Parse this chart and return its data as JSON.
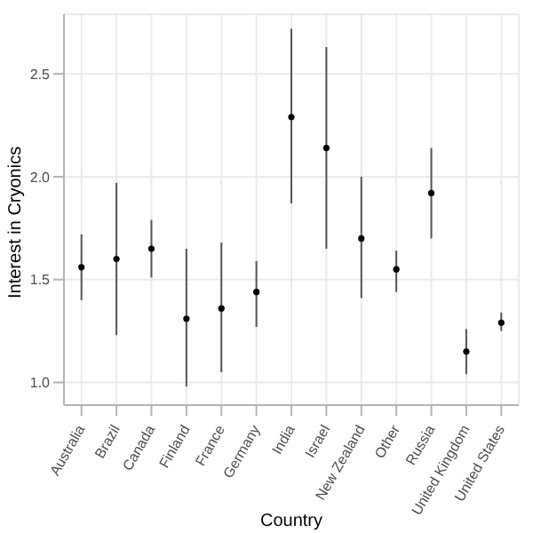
{
  "chart_data": {
    "type": "scatter",
    "xlabel": "Country",
    "ylabel": "Interest in Cryonics",
    "categories": [
      "Australia",
      "Brazil",
      "Canada",
      "Finland",
      "France",
      "Germany",
      "India",
      "Israel",
      "New Zealand",
      "Other",
      "Russia",
      "United Kingdom",
      "United States"
    ],
    "values": [
      1.56,
      1.6,
      1.65,
      1.31,
      1.36,
      1.44,
      2.29,
      2.14,
      1.7,
      1.55,
      1.92,
      1.15,
      1.29
    ],
    "errors": [
      [
        1.4,
        1.72
      ],
      [
        1.23,
        1.97
      ],
      [
        1.51,
        1.79
      ],
      [
        0.98,
        1.65
      ],
      [
        1.05,
        1.68
      ],
      [
        1.27,
        1.59
      ],
      [
        1.87,
        2.72
      ],
      [
        1.65,
        2.63
      ],
      [
        1.41,
        2.0
      ],
      [
        1.44,
        1.64
      ],
      [
        1.7,
        2.14
      ],
      [
        1.04,
        1.26
      ],
      [
        1.25,
        1.34
      ]
    ],
    "color": "#000000",
    "ylim": [
      0.89,
      2.79
    ],
    "yticks": [
      {
        "value": 1,
        "label": "1.0"
      },
      {
        "value": 1.5,
        "label": "1.5"
      },
      {
        "value": 2,
        "label": "2.0"
      },
      {
        "value": 2.5,
        "label": "2.5"
      }
    ],
    "grid": true,
    "marker": "circle"
  }
}
